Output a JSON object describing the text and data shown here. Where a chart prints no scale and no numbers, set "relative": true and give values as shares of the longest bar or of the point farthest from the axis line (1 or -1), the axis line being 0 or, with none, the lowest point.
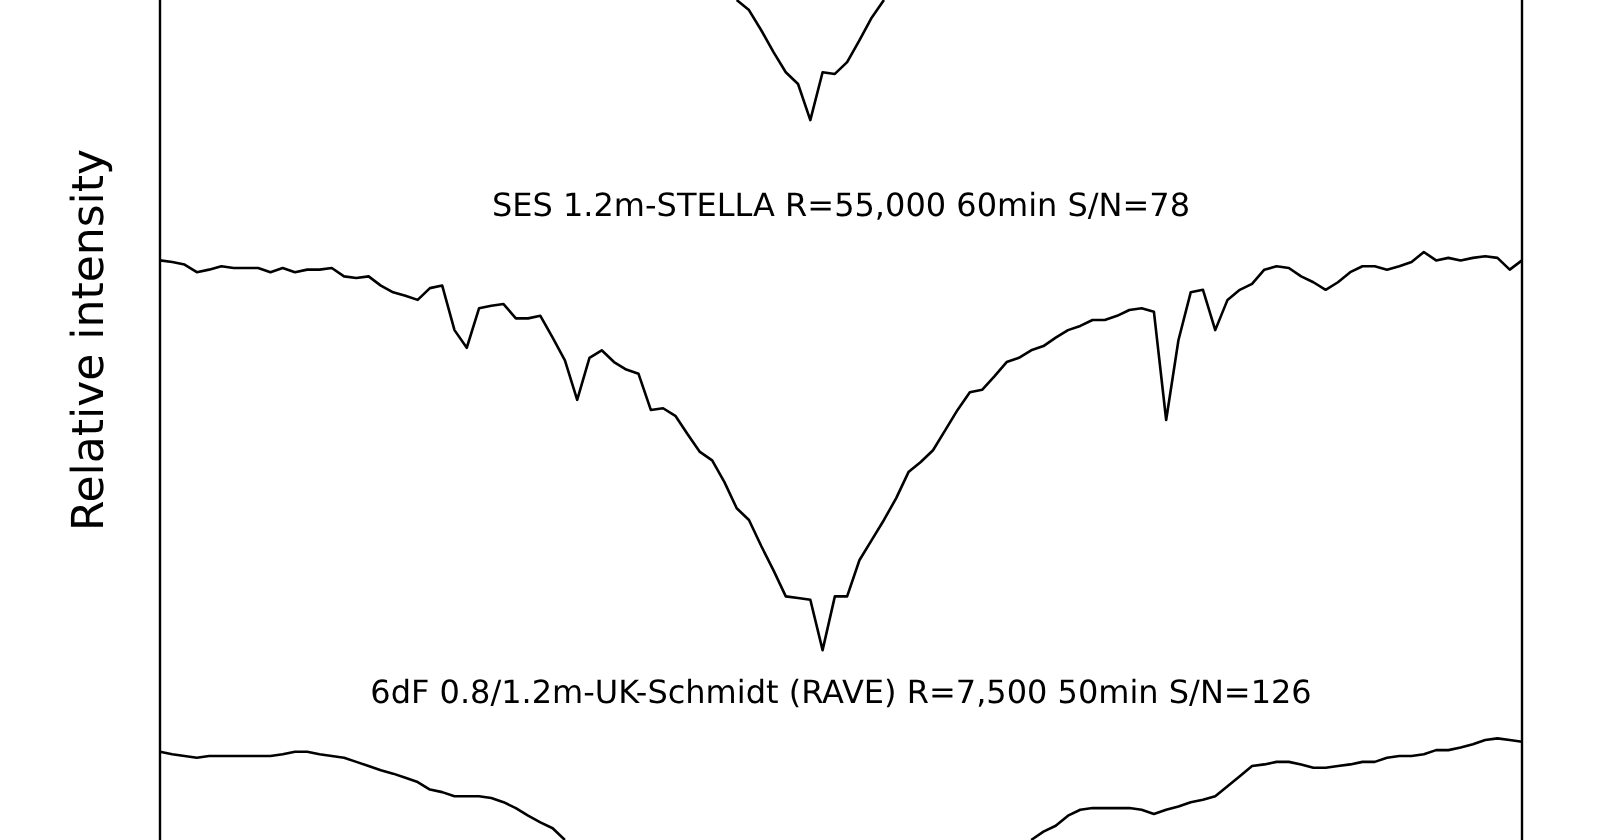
{
  "chart_data": {
    "type": "line",
    "relative": true,
    "ylabel": "Relative intensity",
    "legend": false,
    "marker": "none",
    "line_style": "solid",
    "categories": [
      null,
      null,
      null,
      null,
      null,
      null,
      null,
      null,
      null,
      null,
      null,
      null,
      null,
      null,
      null,
      null,
      null,
      null,
      null,
      null,
      null,
      null,
      null,
      null,
      null,
      null,
      null,
      null,
      null,
      null,
      null,
      null,
      null,
      null,
      null,
      null,
      null,
      null,
      null,
      null,
      null,
      null,
      null,
      null,
      null,
      null,
      null,
      null,
      null,
      null,
      null,
      null,
      null,
      null,
      null,
      null,
      null,
      null,
      null,
      null,
      null,
      null,
      null,
      null,
      null,
      null,
      null,
      null,
      null,
      null,
      null,
      null,
      null,
      null,
      null,
      null,
      null,
      null,
      null,
      null,
      null,
      null,
      null,
      null,
      null,
      null,
      null,
      null,
      null,
      null,
      null,
      null,
      null,
      null,
      null,
      null,
      null,
      null,
      null,
      null,
      null,
      null,
      null,
      null,
      null,
      null,
      null,
      null,
      null,
      null,
      null,
      null
    ],
    "series": [
      {
        "color": "#000000",
        "values": [
          null,
          null,
          null,
          null,
          null,
          null,
          null,
          null,
          null,
          null,
          null,
          null,
          null,
          null,
          null,
          null,
          null,
          null,
          null,
          null,
          null,
          null,
          null,
          null,
          null,
          null,
          null,
          null,
          null,
          null,
          null,
          null,
          null,
          null,
          null,
          null,
          null,
          null,
          null,
          null,
          null,
          null,
          null,
          null,
          null,
          null,
          null,
          1,
          0.988,
          0.964,
          0.938,
          0.914,
          0.9,
          0.857,
          0.914,
          0.912,
          0.926,
          0.952,
          0.979,
          1,
          null,
          null,
          null,
          null,
          null,
          null,
          null,
          null,
          null,
          null,
          null,
          null,
          null,
          null,
          null,
          null,
          null,
          null,
          null,
          null,
          null,
          null,
          null,
          null,
          null,
          null,
          null,
          null,
          null,
          null,
          null,
          null,
          null,
          null,
          null,
          null,
          null,
          null,
          null,
          null,
          null,
          null,
          null,
          null,
          null,
          null,
          null,
          null,
          null,
          null,
          null,
          null
        ]
      },
      {
        "name": "SES 1.2m-STELLA R=55,000 60min S/N=78",
        "color": "#000000",
        "values": [
          0.69,
          0.688,
          0.685,
          0.676,
          0.679,
          0.683,
          0.681,
          0.681,
          0.681,
          0.676,
          0.681,
          0.676,
          0.679,
          0.679,
          0.681,
          0.671,
          0.669,
          0.671,
          0.66,
          0.652,
          0.648,
          0.643,
          0.657,
          0.66,
          0.607,
          0.586,
          0.633,
          0.636,
          0.638,
          0.621,
          0.621,
          0.624,
          0.598,
          0.571,
          0.524,
          0.574,
          0.583,
          0.569,
          0.56,
          0.555,
          0.512,
          0.514,
          0.505,
          0.483,
          0.462,
          0.452,
          0.426,
          0.395,
          0.381,
          0.35,
          0.321,
          0.29,
          0.288,
          0.286,
          0.226,
          0.29,
          0.29,
          0.333,
          0.357,
          0.381,
          0.407,
          0.438,
          0.45,
          0.464,
          0.488,
          0.512,
          0.533,
          0.536,
          0.552,
          0.569,
          0.574,
          0.583,
          0.588,
          0.598,
          0.607,
          0.612,
          0.619,
          0.619,
          0.624,
          0.631,
          0.633,
          0.629,
          0.5,
          0.595,
          0.652,
          0.655,
          0.607,
          0.643,
          0.655,
          0.662,
          0.679,
          0.683,
          0.681,
          0.671,
          0.664,
          0.655,
          0.664,
          0.676,
          0.683,
          0.683,
          0.679,
          0.683,
          0.688,
          0.7,
          0.69,
          0.693,
          0.69,
          0.693,
          0.695,
          0.693,
          0.679,
          0.69
        ]
      },
      {
        "name": "6dF 0.8/1.2m-UK-Schmidt (RAVE) R=7,500 50min S/N=126",
        "color": "#000000",
        "values": [
          0.105,
          0.102,
          0.1,
          0.098,
          0.1,
          0.1,
          0.1,
          0.1,
          0.1,
          0.1,
          0.102,
          0.105,
          0.105,
          0.102,
          0.1,
          0.098,
          0.093,
          0.088,
          0.083,
          0.079,
          0.074,
          0.069,
          0.06,
          0.057,
          0.052,
          0.052,
          0.052,
          0.05,
          0.045,
          0.038,
          0.029,
          0.021,
          0.014,
          0,
          null,
          null,
          null,
          null,
          null,
          null,
          null,
          null,
          null,
          null,
          null,
          null,
          null,
          null,
          null,
          null,
          null,
          null,
          null,
          null,
          null,
          null,
          null,
          null,
          null,
          null,
          null,
          null,
          null,
          null,
          null,
          null,
          null,
          null,
          null,
          null,
          null,
          0,
          0.01,
          0.017,
          0.029,
          0.036,
          0.038,
          0.038,
          0.038,
          0.038,
          0.036,
          0.031,
          0.036,
          0.04,
          0.045,
          0.048,
          0.052,
          0.064,
          0.076,
          0.088,
          0.09,
          0.093,
          0.093,
          0.09,
          0.086,
          0.086,
          0.088,
          0.09,
          0.093,
          0.093,
          0.098,
          0.1,
          0.1,
          0.102,
          0.107,
          0.107,
          0.11,
          0.114,
          0.119,
          0.121,
          0.119,
          0.117
        ]
      }
    ]
  }
}
